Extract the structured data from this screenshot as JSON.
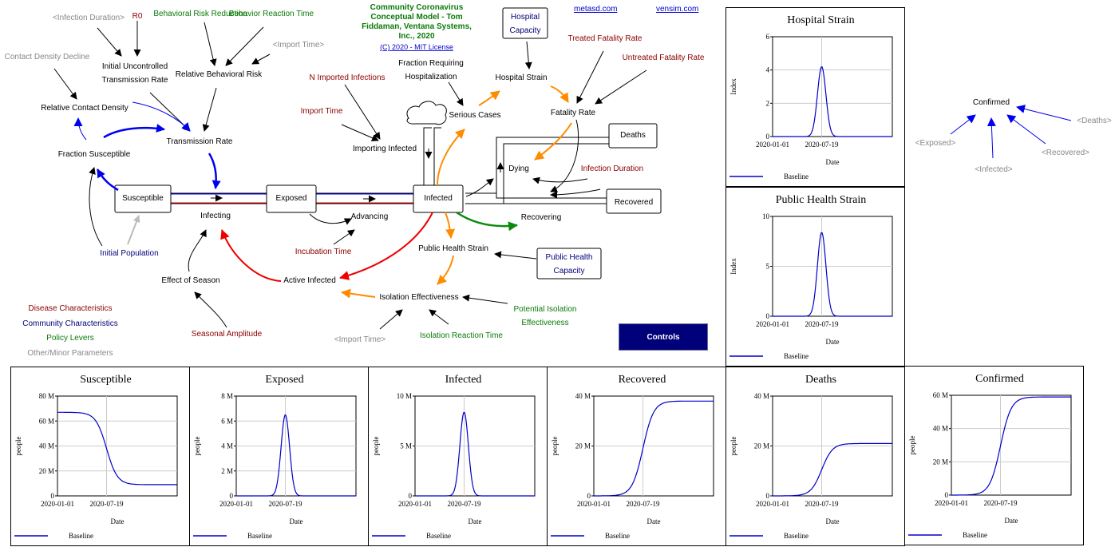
{
  "header": {
    "title_line1": "Community Coronavirus",
    "title_line2": "Conceptual Model - Tom",
    "title_line3": "Fiddaman, Ventana Systems,",
    "title_line4": "Inc., 2020",
    "license": "(C) 2020 - MIT License",
    "link_metasd": "metasd.com",
    "link_vensim": "vensim.com"
  },
  "stocks": {
    "susceptible": "Susceptible",
    "exposed": "Exposed",
    "infected": "Infected",
    "deaths": "Deaths",
    "recovered": "Recovered"
  },
  "flows": {
    "infecting": "Infecting",
    "advancing": "Advancing",
    "dying": "Dying",
    "recovering": "Recovering"
  },
  "variables": {
    "infection_duration_shadow": "<Infection Duration>",
    "r0": "R0",
    "behavioral_risk_reduction": "Behavioral Risk Reduction",
    "behavior_reaction_time": "Behavior Reaction Time",
    "import_time_shadow_top": "<Import Time>",
    "contact_density_decline": "Contact Density Decline",
    "initial_uncontrolled_1": "Initial Uncontrolled",
    "initial_uncontrolled_2": "Transmission Rate",
    "relative_behavioral_risk": "Relative Behavioral Risk",
    "relative_contact_density": "Relative Contact Density",
    "transmission_rate": "Transmission Rate",
    "fraction_susceptible": "Fraction Susceptible",
    "n_imported_infections": "N Imported Infections",
    "import_time": "Import Time",
    "importing_infected": "Importing Infected",
    "fraction_requiring_1": "Fraction Requiring",
    "fraction_requiring_2": "Hospitalization",
    "serious_cases": "Serious Cases",
    "hospital_capacity_1": "Hospital",
    "hospital_capacity_2": "Capacity",
    "hospital_strain": "Hospital Strain",
    "treated_fatality_rate": "Treated Fatality Rate",
    "untreated_fatality_rate": "Untreated Fatality Rate",
    "fatality_rate": "Fatality Rate",
    "infection_duration": "Infection Duration",
    "initial_population": "Initial Population",
    "incubation_time": "Incubation Time",
    "public_health_strain": "Public Health Strain",
    "public_health_capacity_1": "Public Health",
    "public_health_capacity_2": "Capacity",
    "effect_of_season": "Effect of Season",
    "active_infected": "Active Infected",
    "isolation_effectiveness": "Isolation Effectiveness",
    "potential_isolation_1": "Potential Isolation",
    "potential_isolation_2": "Effectiveness",
    "seasonal_amplitude": "Seasonal Amplitude",
    "import_time_shadow_bottom": "<Import Time>",
    "isolation_reaction_time": "Isolation Reaction Time"
  },
  "legend": {
    "disease": "Disease Characteristics",
    "community": "Community Characteristics",
    "policy": "Policy Levers",
    "other": "Other/Minor Parameters"
  },
  "colors": {
    "disease": "#8b0000",
    "community": "#00007a",
    "policy": "#0a7a0a",
    "other": "#888888",
    "link_blue": "#0000ee",
    "link_red": "#ee0000",
    "link_orange": "#ff8c00",
    "link_green": "#0a8a0a",
    "button": "#00007a",
    "series": "#0000cc"
  },
  "controls_button": "Controls",
  "confirmed_diagram": {
    "center": "Confirmed",
    "exposed": "<Exposed>",
    "infected": "<Infected>",
    "recovered": "<Recovered>",
    "deaths": "<Deaths>"
  },
  "chart_data": [
    {
      "type": "line",
      "title": "Hospital Strain",
      "ylabel": "Index",
      "xlabel": "Date",
      "x_ticks": [
        "2020-01-01",
        "2020-07-19"
      ],
      "ylim": [
        0,
        6
      ],
      "y_ticks": [
        "0",
        "2",
        "4",
        "6"
      ],
      "legend": "Baseline",
      "shape": "peak",
      "peak_value": 4.2,
      "final_value": 0
    },
    {
      "type": "line",
      "title": "Public Health Strain",
      "ylabel": "Index",
      "xlabel": "Date",
      "x_ticks": [
        "2020-01-01",
        "2020-07-19"
      ],
      "ylim": [
        0,
        10
      ],
      "y_ticks": [
        "0",
        "5",
        "10"
      ],
      "legend": "Baseline",
      "shape": "peak",
      "peak_value": 8.4,
      "final_value": 0
    },
    {
      "type": "line",
      "title": "Susceptible",
      "ylabel": "people",
      "xlabel": "Date",
      "x_ticks": [
        "2020-01-01",
        "2020-07-19"
      ],
      "ylim": [
        0,
        80
      ],
      "y_ticks": [
        "0",
        "20 M",
        "40 M",
        "60 M",
        "80 M"
      ],
      "legend": "Baseline",
      "shape": "decline",
      "start_value": 67,
      "final_value": 9
    },
    {
      "type": "line",
      "title": "Exposed",
      "ylabel": "people",
      "xlabel": "Date",
      "x_ticks": [
        "2020-01-01",
        "2020-07-19"
      ],
      "ylim": [
        0,
        8
      ],
      "y_ticks": [
        "0",
        "2 M",
        "4 M",
        "6 M",
        "8 M"
      ],
      "legend": "Baseline",
      "shape": "peak",
      "peak_value": 6.5,
      "final_value": 0
    },
    {
      "type": "line",
      "title": "Infected",
      "ylabel": "people",
      "xlabel": "Date",
      "x_ticks": [
        "2020-01-01",
        "2020-07-19"
      ],
      "ylim": [
        0,
        10
      ],
      "y_ticks": [
        "0",
        "5 M",
        "10 M"
      ],
      "legend": "Baseline",
      "shape": "peak",
      "peak_value": 8.4,
      "final_value": 0
    },
    {
      "type": "line",
      "title": "Recovered",
      "ylabel": "people",
      "xlabel": "Date",
      "x_ticks": [
        "2020-01-01",
        "2020-07-19"
      ],
      "ylim": [
        0,
        40
      ],
      "y_ticks": [
        "0",
        "20 M",
        "40 M"
      ],
      "legend": "Baseline",
      "shape": "rise",
      "start_value": 0,
      "final_value": 38
    },
    {
      "type": "line",
      "title": "Deaths",
      "ylabel": "people",
      "xlabel": "Date",
      "x_ticks": [
        "2020-01-01",
        "2020-07-19"
      ],
      "ylim": [
        0,
        40
      ],
      "y_ticks": [
        "0",
        "20 M",
        "40 M"
      ],
      "legend": "Baseline",
      "shape": "rise",
      "start_value": 0,
      "final_value": 21
    },
    {
      "type": "line",
      "title": "Confirmed",
      "ylabel": "people",
      "xlabel": "Date",
      "x_ticks": [
        "2020-01-01",
        "2020-07-19"
      ],
      "ylim": [
        0,
        60
      ],
      "y_ticks": [
        "0",
        "20 M",
        "40 M",
        "60 M"
      ],
      "legend": "Baseline",
      "shape": "rise",
      "start_value": 0,
      "final_value": 59
    }
  ]
}
